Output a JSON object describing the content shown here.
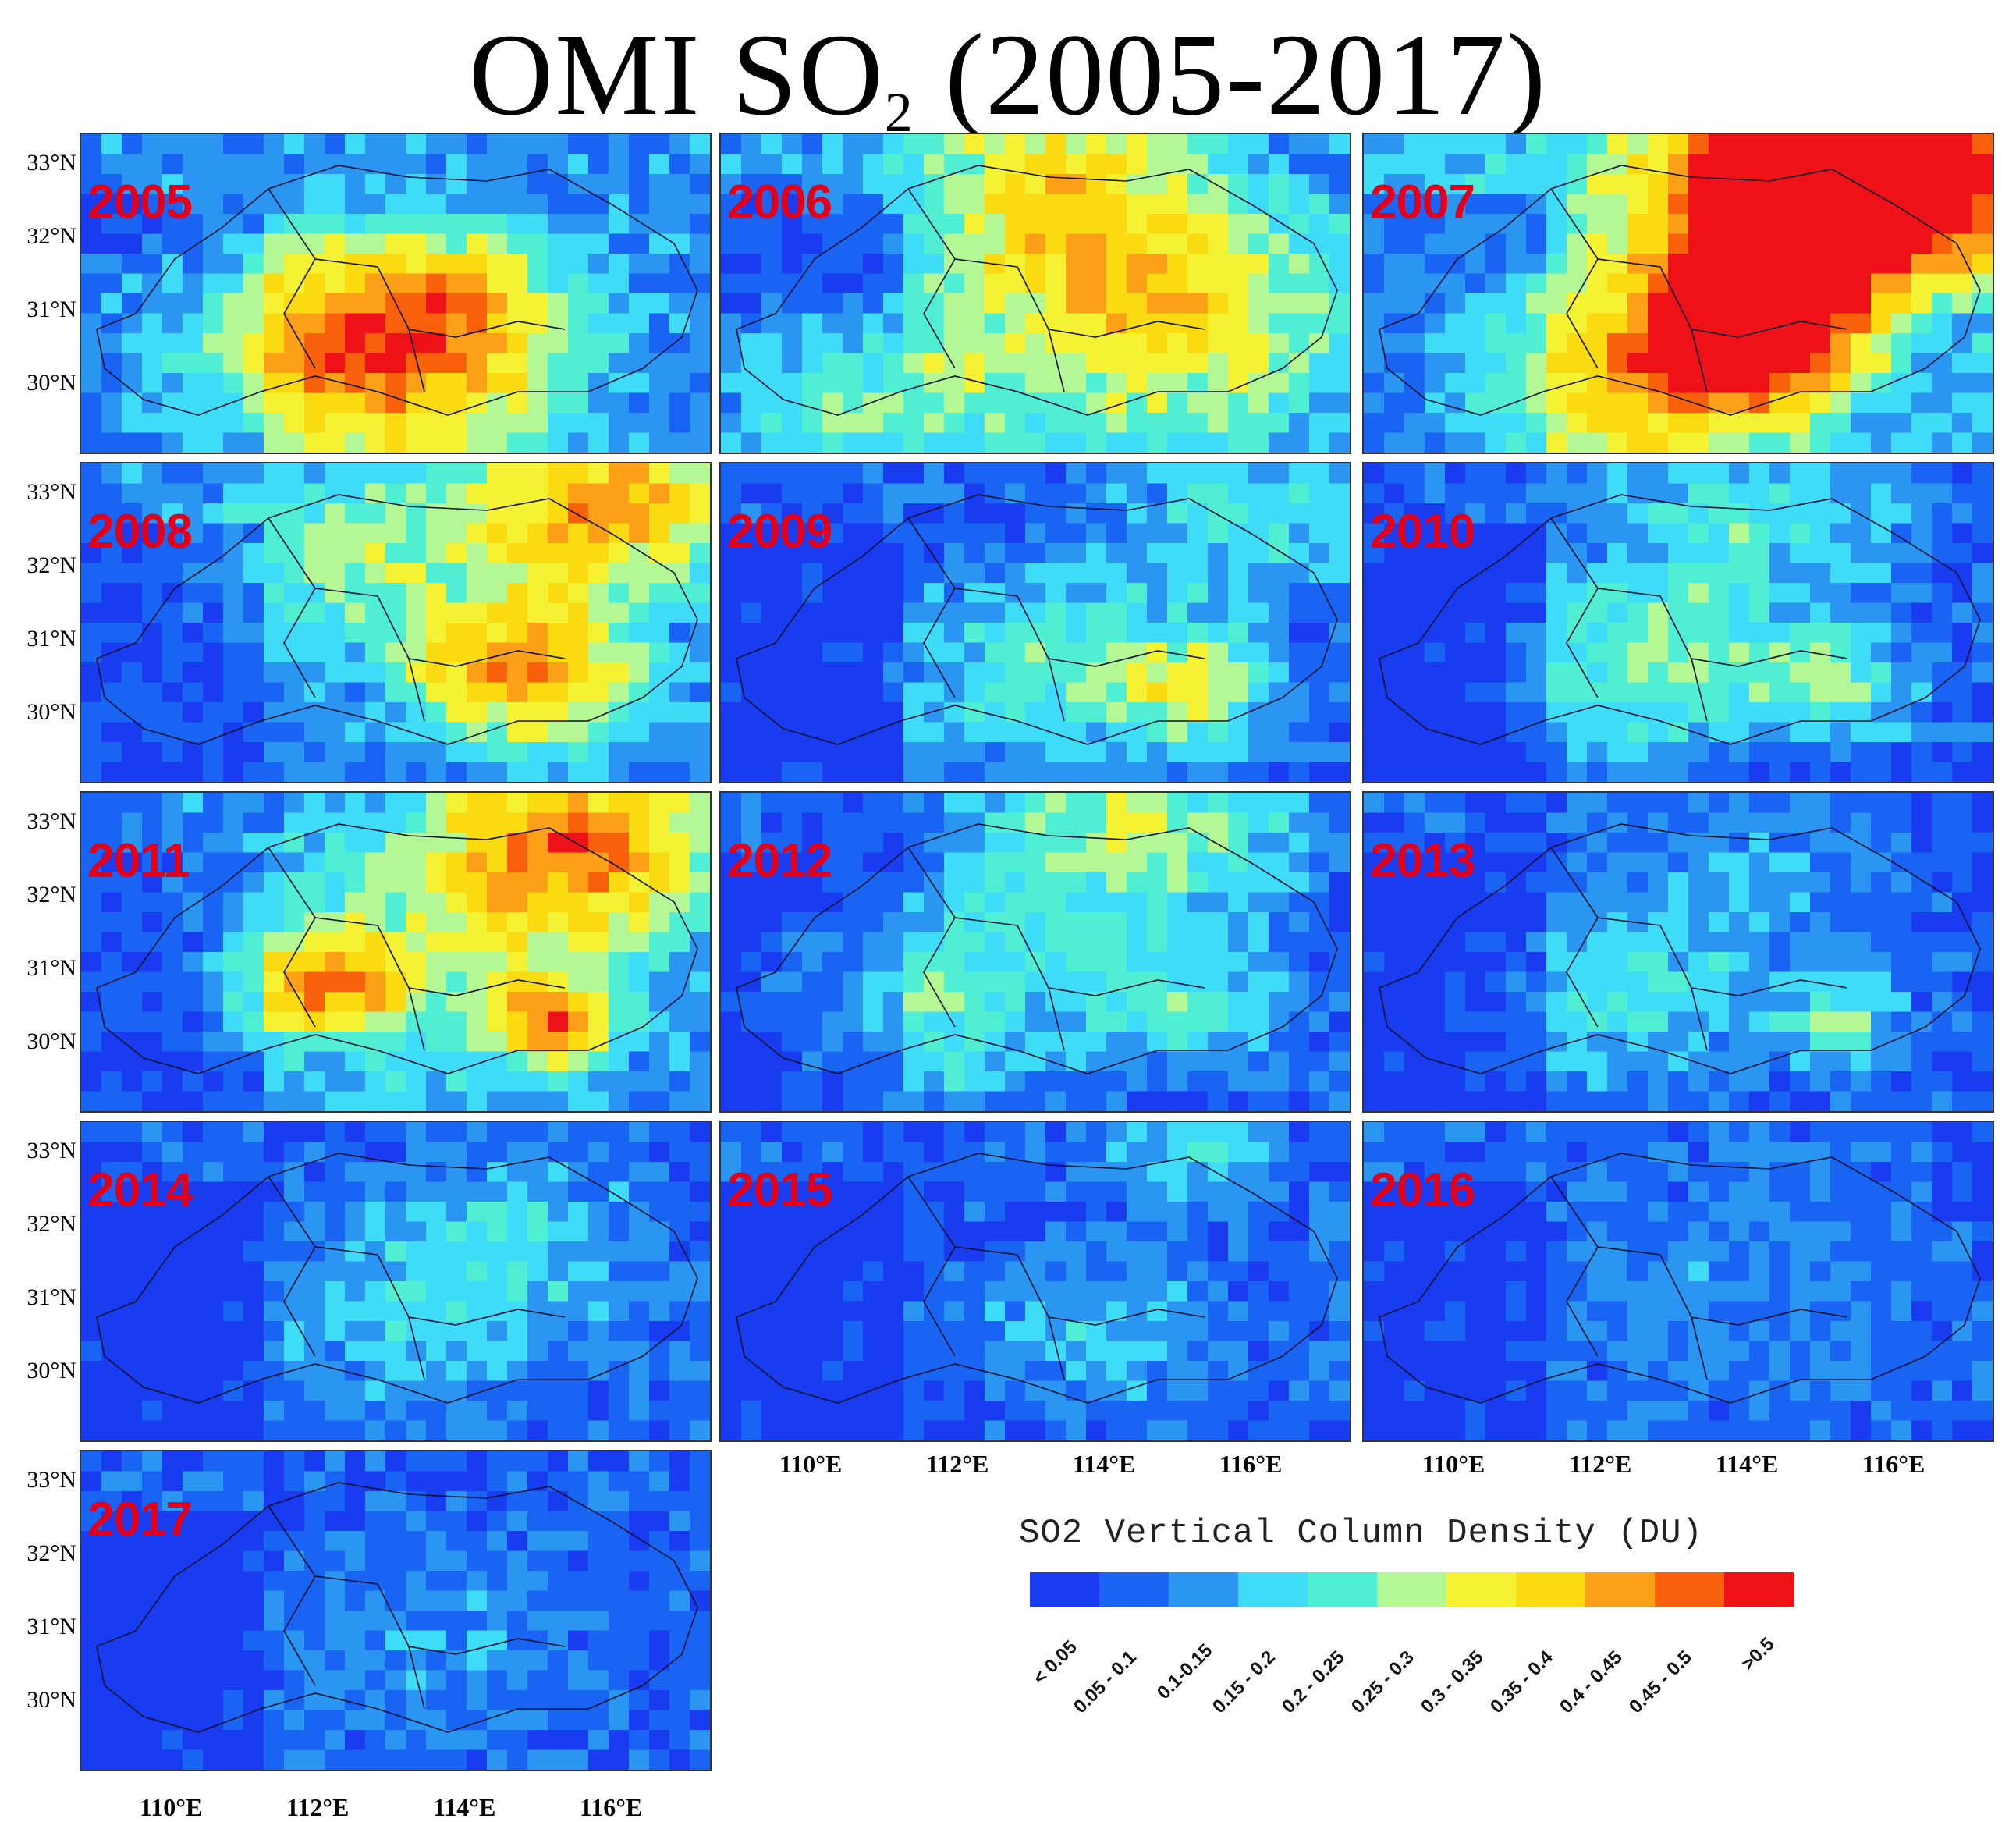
{
  "title": {
    "main": "OMI  SO",
    "subscript": "2",
    "suffix": "  (2005-2017)"
  },
  "latitude_labels": [
    "33°N",
    "32°N",
    "31°N",
    "30°N"
  ],
  "longitude_labels": [
    "110°E",
    "112°E",
    "114°E",
    "116°E"
  ],
  "panels": [
    {
      "year": "2005",
      "base": 1,
      "hotspots": [
        [
          0.55,
          0.65,
          0.4,
          0.5
        ],
        [
          0.6,
          0.5,
          0.1,
          0.25
        ],
        [
          0.38,
          0.7,
          0.4,
          0.6
        ]
      ]
    },
    {
      "year": "2006",
      "base": 1,
      "hotspots": [
        [
          0.68,
          0.55,
          0.5,
          0.6
        ],
        [
          0.5,
          0.1,
          0.35,
          0.5
        ],
        [
          0.2,
          0.85,
          0.35,
          0.4
        ]
      ]
    },
    {
      "year": "2007",
      "base": 2,
      "hotspots": [
        [
          0.64,
          0.58,
          0.8,
          0.35
        ],
        [
          0.85,
          0.12,
          1.0,
          0.5
        ],
        [
          0.6,
          0.15,
          0.6,
          0.45
        ],
        [
          0.45,
          0.75,
          0.5,
          0.5
        ]
      ]
    },
    {
      "year": "2008",
      "base": 1,
      "hotspots": [
        [
          0.72,
          0.66,
          0.6,
          0.35
        ],
        [
          0.85,
          0.12,
          0.6,
          0.4
        ],
        [
          0.5,
          0.3,
          0.3,
          0.5
        ]
      ]
    },
    {
      "year": "2009",
      "base": 0,
      "hotspots": [
        [
          0.55,
          0.65,
          0.3,
          0.5
        ],
        [
          0.75,
          0.7,
          0.35,
          0.25
        ],
        [
          0.85,
          0.15,
          0.25,
          0.4
        ]
      ]
    },
    {
      "year": "2010",
      "base": 0,
      "hotspots": [
        [
          0.45,
          0.65,
          0.35,
          0.4
        ],
        [
          0.75,
          0.7,
          0.35,
          0.25
        ],
        [
          0.6,
          0.2,
          0.25,
          0.5
        ]
      ]
    },
    {
      "year": "2011",
      "base": 1,
      "hotspots": [
        [
          0.8,
          0.15,
          0.6,
          0.45
        ],
        [
          0.38,
          0.6,
          0.45,
          0.25
        ],
        [
          0.75,
          0.72,
          0.55,
          0.2
        ],
        [
          0.55,
          0.5,
          0.3,
          0.6
        ]
      ]
    },
    {
      "year": "2012",
      "base": 0,
      "hotspots": [
        [
          0.65,
          0.1,
          0.4,
          0.5
        ],
        [
          0.35,
          0.65,
          0.3,
          0.5
        ],
        [
          0.75,
          0.65,
          0.3,
          0.3
        ]
      ]
    },
    {
      "year": "2013",
      "base": 0,
      "hotspots": [
        [
          0.75,
          0.72,
          0.35,
          0.2
        ],
        [
          0.4,
          0.65,
          0.25,
          0.4
        ],
        [
          0.6,
          0.3,
          0.15,
          0.4
        ]
      ]
    },
    {
      "year": "2014",
      "base": 0,
      "hotspots": [
        [
          0.55,
          0.6,
          0.2,
          0.5
        ],
        [
          0.7,
          0.3,
          0.15,
          0.4
        ]
      ]
    },
    {
      "year": "2015",
      "base": 0,
      "hotspots": [
        [
          0.75,
          0.1,
          0.25,
          0.25
        ],
        [
          0.6,
          0.65,
          0.18,
          0.35
        ]
      ]
    },
    {
      "year": "2016",
      "base": 0,
      "hotspots": [
        [
          0.55,
          0.55,
          0.08,
          0.6
        ]
      ]
    },
    {
      "year": "2017",
      "base": 0,
      "hotspots": [
        [
          0.55,
          0.6,
          0.1,
          0.5
        ]
      ]
    }
  ],
  "legend": {
    "title": "SO2 Vertical Column Density  (DU)",
    "colors": [
      "#1a3cf0",
      "#1a64f4",
      "#2a96f2",
      "#3fdcf8",
      "#50eed2",
      "#b4f896",
      "#f4f232",
      "#fada10",
      "#fca018",
      "#f8600c",
      "#ee1218"
    ],
    "labels": [
      "< 0.05",
      "0.05 - 0.1",
      "0.1-0.15",
      "0.15 - 0.2",
      "0.2 - 0.25",
      "0.25 - 0.3",
      "0.3 - 0.35",
      "0.35 - 0.4",
      "0.4 - 0.45",
      "0.45 - 0.5",
      ">0.5"
    ]
  }
}
